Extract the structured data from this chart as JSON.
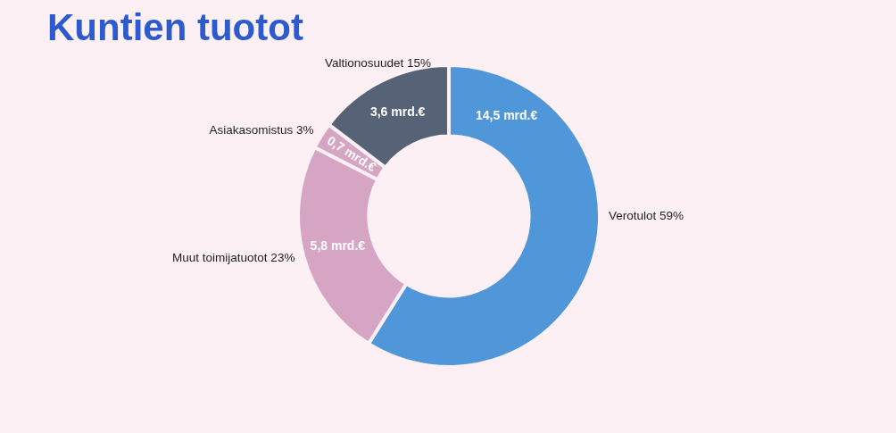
{
  "chart_data": {
    "type": "donut",
    "title": "Kuntien tuotot",
    "categories": [
      "Verotulot 59%",
      "Muut toimijatuotot 23%",
      "Asiakasomistus 3%",
      "Valtionosuudet 15%"
    ],
    "values": [
      14.5,
      5.8,
      0.7,
      3.6
    ],
    "colors": [
      "#5097da",
      "#d7a5c4",
      "#d7a5c4",
      "#566276"
    ],
    "value_labels": [
      "14,5 mrd.€",
      "5,8 mrd.€",
      "0,7 mrd.€",
      "3,6 mrd.€"
    ],
    "legend": false
  }
}
